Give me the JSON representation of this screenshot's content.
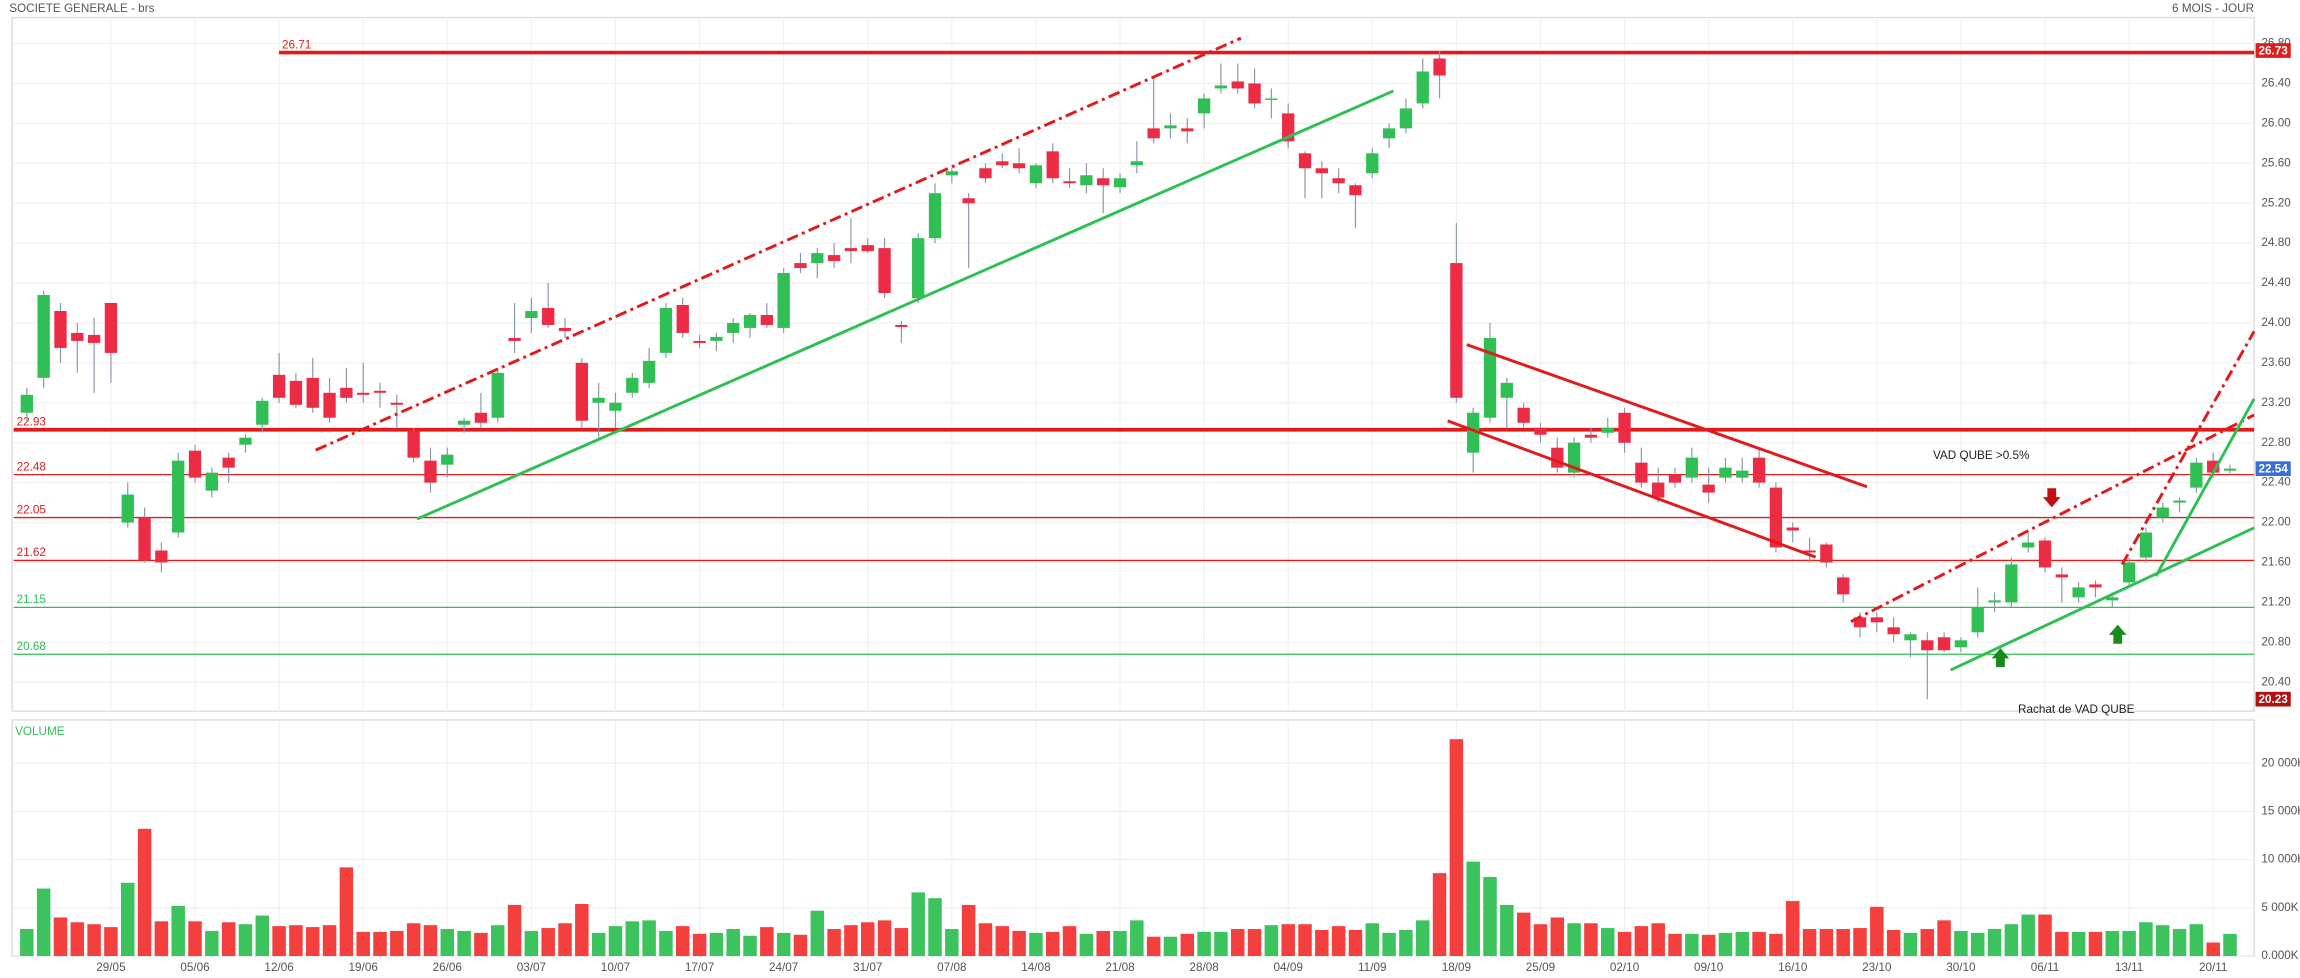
{
  "chart_data": {
    "type": "candlestick",
    "title": "SOCIETE GENERALE - brs",
    "subtitle": "6 MOIS - JOUR",
    "up_color": "#2fbf55",
    "down_color": "#ec2b45",
    "grid": true,
    "categories": [
      null,
      null,
      null,
      null,
      null,
      "29/05",
      null,
      null,
      null,
      null,
      "05/06",
      null,
      null,
      null,
      null,
      "12/06",
      null,
      null,
      null,
      null,
      "19/06",
      null,
      null,
      null,
      null,
      "26/06",
      null,
      null,
      null,
      null,
      "03/07",
      null,
      null,
      null,
      null,
      "10/07",
      null,
      null,
      null,
      null,
      "17/07",
      null,
      null,
      null,
      null,
      "24/07",
      null,
      null,
      null,
      null,
      "31/07",
      null,
      null,
      null,
      null,
      "07/08",
      null,
      null,
      null,
      null,
      "14/08",
      null,
      null,
      null,
      null,
      "21/08",
      null,
      null,
      null,
      null,
      "28/08",
      null,
      null,
      null,
      null,
      "04/09",
      null,
      null,
      null,
      null,
      "11/09",
      null,
      null,
      null,
      null,
      "18/09",
      null,
      null,
      null,
      null,
      "25/09",
      null,
      null,
      null,
      null,
      "02/10",
      null,
      null,
      null,
      null,
      "09/10",
      null,
      null,
      null,
      null,
      "16/10",
      null,
      null,
      null,
      null,
      "23/10",
      null,
      null,
      null,
      null,
      "30/10",
      null,
      null,
      null,
      null,
      "06/11",
      null,
      null,
      null,
      null,
      "13/11",
      null,
      null,
      null,
      null,
      "20/11",
      null
    ],
    "open": [
      23.1,
      23.45,
      24.12,
      23.9,
      23.88,
      24.2,
      22.0,
      22.05,
      21.72,
      21.9,
      22.72,
      22.32,
      22.65,
      22.78,
      22.98,
      23.48,
      23.42,
      23.45,
      23.3,
      23.35,
      23.3,
      23.32,
      23.2,
      22.92,
      22.62,
      22.58,
      22.98,
      23.1,
      23.05,
      23.85,
      24.05,
      24.15,
      23.95,
      23.6,
      23.2,
      23.12,
      23.3,
      23.4,
      23.7,
      24.18,
      23.82,
      23.82,
      23.9,
      23.95,
      24.08,
      23.95,
      24.6,
      24.6,
      24.68,
      24.75,
      24.78,
      24.75,
      23.98,
      24.25,
      24.85,
      25.48,
      25.25,
      25.55,
      25.62,
      25.6,
      25.4,
      25.72,
      25.42,
      25.38,
      25.45,
      25.36,
      25.58,
      25.95,
      25.95,
      25.95,
      26.1,
      26.35,
      26.42,
      26.4,
      26.25,
      26.1,
      25.7,
      25.55,
      25.45,
      25.38,
      25.5,
      25.85,
      25.95,
      26.2,
      26.65,
      24.6,
      22.7,
      23.05,
      23.25,
      23.15,
      22.95,
      22.75,
      22.5,
      22.88,
      22.9,
      23.1,
      22.6,
      22.4,
      22.48,
      22.45,
      22.38,
      22.45,
      22.45,
      22.65,
      22.35,
      21.95,
      21.72,
      21.78,
      21.45,
      21.05,
      21.05,
      20.95,
      20.82,
      20.82,
      20.85,
      20.75,
      20.9,
      21.2,
      21.2,
      21.75,
      21.82,
      21.48,
      21.25,
      21.38,
      21.22,
      21.4,
      21.65,
      22.05,
      22.2,
      22.35,
      22.62,
      22.52
    ],
    "high": [
      23.35,
      24.32,
      24.2,
      24.0,
      24.05,
      24.2,
      22.4,
      22.15,
      21.8,
      22.7,
      22.78,
      22.55,
      22.7,
      22.88,
      23.25,
      23.7,
      23.5,
      23.65,
      23.45,
      23.55,
      23.6,
      23.4,
      23.28,
      22.95,
      22.75,
      22.75,
      23.05,
      23.3,
      23.55,
      24.2,
      24.25,
      24.4,
      24.05,
      23.65,
      23.4,
      23.3,
      23.5,
      23.75,
      24.2,
      24.25,
      23.88,
      23.9,
      24.05,
      24.1,
      24.2,
      24.55,
      24.7,
      24.75,
      24.8,
      25.05,
      24.85,
      24.85,
      24.02,
      24.9,
      25.4,
      25.55,
      25.3,
      25.6,
      25.7,
      25.75,
      25.6,
      25.8,
      25.55,
      25.6,
      25.55,
      25.5,
      25.82,
      26.45,
      26.1,
      26.05,
      26.3,
      26.6,
      26.6,
      26.55,
      26.35,
      26.2,
      25.72,
      25.62,
      25.55,
      25.4,
      25.75,
      26.0,
      26.25,
      26.65,
      26.73,
      25.0,
      23.15,
      24.0,
      23.45,
      23.2,
      23.0,
      22.85,
      22.85,
      22.95,
      23.05,
      23.15,
      22.75,
      22.55,
      22.55,
      22.75,
      22.55,
      22.65,
      22.65,
      22.75,
      22.4,
      22.0,
      21.85,
      21.8,
      21.48,
      21.1,
      21.1,
      21.05,
      20.9,
      20.9,
      20.9,
      20.85,
      21.35,
      21.3,
      21.65,
      21.9,
      21.85,
      21.55,
      21.4,
      21.42,
      21.3,
      21.65,
      21.95,
      22.2,
      22.25,
      22.65,
      22.7,
      22.58
    ],
    "low": [
      23.0,
      23.35,
      23.6,
      23.5,
      23.3,
      23.4,
      21.95,
      21.6,
      21.5,
      21.85,
      22.4,
      22.25,
      22.4,
      22.7,
      22.9,
      23.2,
      23.15,
      23.1,
      23.0,
      23.2,
      23.2,
      23.15,
      22.95,
      22.6,
      22.3,
      22.45,
      22.9,
      22.95,
      23.0,
      23.7,
      23.9,
      23.95,
      23.85,
      22.95,
      22.85,
      22.95,
      23.25,
      23.35,
      23.65,
      23.85,
      23.75,
      23.72,
      23.8,
      23.85,
      23.95,
      23.9,
      24.5,
      24.45,
      24.55,
      24.6,
      24.7,
      24.25,
      23.8,
      24.2,
      24.8,
      25.4,
      24.55,
      25.4,
      25.55,
      25.5,
      25.35,
      25.4,
      25.35,
      25.3,
      25.1,
      25.3,
      25.5,
      25.8,
      25.85,
      25.8,
      25.95,
      26.3,
      26.3,
      26.15,
      26.05,
      25.75,
      25.25,
      25.25,
      25.3,
      24.95,
      25.45,
      25.75,
      25.9,
      26.15,
      26.25,
      23.2,
      22.5,
      23.0,
      22.95,
      22.95,
      22.8,
      22.5,
      22.45,
      22.8,
      22.85,
      22.7,
      22.35,
      22.2,
      22.35,
      22.4,
      22.2,
      22.4,
      22.4,
      22.35,
      21.7,
      21.8,
      21.6,
      21.55,
      21.2,
      20.85,
      20.9,
      20.8,
      20.65,
      20.23,
      20.7,
      20.7,
      20.85,
      21.1,
      21.15,
      21.7,
      21.5,
      21.2,
      21.2,
      21.25,
      21.15,
      21.35,
      21.6,
      22.0,
      22.1,
      22.3,
      22.45,
      22.48
    ],
    "close": [
      23.28,
      24.28,
      23.75,
      23.82,
      23.8,
      23.7,
      22.28,
      21.62,
      21.6,
      22.62,
      22.45,
      22.5,
      22.55,
      22.85,
      23.22,
      23.25,
      23.18,
      23.15,
      23.05,
      23.25,
      23.28,
      23.3,
      23.18,
      22.65,
      22.4,
      22.68,
      23.02,
      23.0,
      23.5,
      23.82,
      24.12,
      23.98,
      23.92,
      23.02,
      23.25,
      23.2,
      23.45,
      23.62,
      24.15,
      23.9,
      23.8,
      23.86,
      24.0,
      24.08,
      23.98,
      24.5,
      24.55,
      24.7,
      24.62,
      24.72,
      24.72,
      24.3,
      23.96,
      24.85,
      25.3,
      25.52,
      25.2,
      25.45,
      25.58,
      25.55,
      25.58,
      25.45,
      25.4,
      25.48,
      25.38,
      25.45,
      25.62,
      25.85,
      25.98,
      25.92,
      26.25,
      26.38,
      26.35,
      26.2,
      26.25,
      25.82,
      25.55,
      25.5,
      25.4,
      25.28,
      25.7,
      25.95,
      26.15,
      26.52,
      26.48,
      23.25,
      23.1,
      23.85,
      23.4,
      23.0,
      22.88,
      22.55,
      22.8,
      22.85,
      22.95,
      22.8,
      22.4,
      22.25,
      22.4,
      22.65,
      22.3,
      22.55,
      22.52,
      22.4,
      21.75,
      21.92,
      21.7,
      21.6,
      21.28,
      20.95,
      21.0,
      20.88,
      20.88,
      20.72,
      20.72,
      20.82,
      21.15,
      21.22,
      21.58,
      21.8,
      21.55,
      21.45,
      21.35,
      21.35,
      21.25,
      21.6,
      21.9,
      22.15,
      22.22,
      22.6,
      22.5,
      22.54
    ],
    "ylim": [
      20.11,
      27.06
    ],
    "yticks": [
      {
        "value": 20.4,
        "label": "20.40"
      },
      {
        "value": 20.8,
        "label": "20.80"
      },
      {
        "value": 21.2,
        "label": "21.20"
      },
      {
        "value": 21.6,
        "label": "21.60"
      },
      {
        "value": 22.0,
        "label": "22.00"
      },
      {
        "value": 22.4,
        "label": "22.40"
      },
      {
        "value": 22.8,
        "label": "22.80"
      },
      {
        "value": 23.2,
        "label": "23.20"
      },
      {
        "value": 23.6,
        "label": "23.60"
      },
      {
        "value": 24.0,
        "label": "24.00"
      },
      {
        "value": 24.4,
        "label": "24.40"
      },
      {
        "value": 24.8,
        "label": "24.80"
      },
      {
        "value": 25.2,
        "label": "25.20"
      },
      {
        "value": 25.6,
        "label": "25.60"
      },
      {
        "value": 26.0,
        "label": "26.00"
      },
      {
        "value": 26.4,
        "label": "26.40"
      },
      {
        "value": 26.8,
        "label": "26.80"
      }
    ],
    "levels": [
      {
        "value": 26.71,
        "color": "#e01b1b",
        "thick": true
      },
      {
        "value": 22.93,
        "color": "#e01b1b",
        "thick": true
      },
      {
        "value": 22.48,
        "color": "#e01b1b",
        "thick": false
      },
      {
        "value": 22.05,
        "color": "#e01b1b",
        "thick": false
      },
      {
        "value": 21.62,
        "color": "#e01b1b",
        "thick": false
      },
      {
        "value": 21.15,
        "color": "#2fbf55",
        "thick": false
      },
      {
        "value": 20.68,
        "color": "#2fbf55",
        "thick": false
      }
    ],
    "badges": [
      {
        "value": 26.73,
        "color": "#e01b1b"
      },
      {
        "value": 22.54,
        "color": "#3a6fd8"
      },
      {
        "value": 20.23,
        "color": "#b01010"
      }
    ],
    "annotations": [
      "VAD QUBE >0.5%",
      "Rachat de VAD QUBE"
    ],
    "volume": {
      "label": "VOLUME",
      "ylim": [
        0,
        24500
      ],
      "yticks": [
        {
          "value": 0,
          "label": "0.000K"
        },
        {
          "value": 5000,
          "label": "5 000K"
        },
        {
          "value": 10000,
          "label": "10 000K"
        },
        {
          "value": 15000,
          "label": "15 000K"
        },
        {
          "value": 20000,
          "label": "20 000K"
        }
      ],
      "values": [
        2800,
        7000,
        4000,
        3500,
        3300,
        3000,
        7600,
        13200,
        3600,
        5200,
        3600,
        2600,
        3500,
        3300,
        4200,
        3100,
        3200,
        3000,
        3200,
        9200,
        2500,
        2500,
        2600,
        3400,
        3200,
        2800,
        2600,
        2400,
        3200,
        5300,
        2600,
        2900,
        3400,
        5400,
        2400,
        3100,
        3600,
        3700,
        2600,
        3100,
        2300,
        2400,
        2800,
        2100,
        3000,
        2400,
        2200,
        4700,
        2800,
        3200,
        3500,
        3700,
        2900,
        6600,
        6000,
        2800,
        5300,
        3400,
        3100,
        2600,
        2400,
        2500,
        3100,
        2300,
        2600,
        2600,
        3700,
        2000,
        2000,
        2300,
        2500,
        2500,
        2800,
        2800,
        3200,
        3300,
        3300,
        2700,
        3100,
        2700,
        3400,
        2400,
        2700,
        3700,
        8600,
        22500,
        9800,
        8200,
        5300,
        4500,
        3300,
        4000,
        3400,
        3400,
        2900,
        2500,
        3100,
        3400,
        2300,
        2300,
        2200,
        2400,
        2500,
        2500,
        2300,
        5700,
        2800,
        2800,
        2800,
        2900,
        5100,
        2700,
        2400,
        2800,
        3700,
        2600,
        2400,
        2800,
        3300,
        4300,
        4300,
        2500,
        2500,
        2500,
        2600,
        2600,
        3500,
        3200,
        2800,
        3300,
        1400,
        2300
      ]
    }
  }
}
